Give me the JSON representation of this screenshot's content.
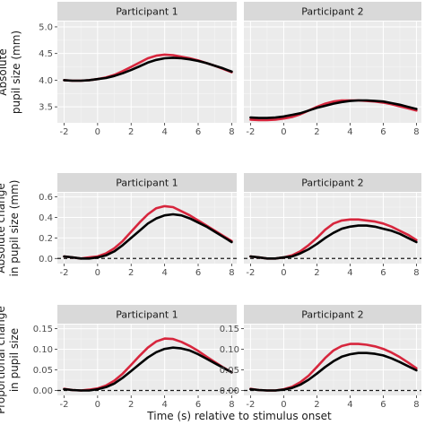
{
  "xlabel": "Time (s) relative to stimulus onset",
  "colors": {
    "red": "#d7263d",
    "black": "#000000"
  },
  "chart_data": [
    {
      "type": "line",
      "row": 0,
      "col": 0,
      "title": "Participant 1",
      "ylabel_lines": [
        "Absolute",
        "pupil size (mm)"
      ],
      "xlim": [
        -2.4,
        8.3
      ],
      "ylim": [
        3.2,
        5.1
      ],
      "yticks": [
        3.5,
        4.0,
        4.5,
        5.0
      ],
      "ytick_labels": [
        "3.5",
        "4.0",
        "4.5",
        "5.0"
      ],
      "xticks": [
        -2,
        0,
        2,
        4,
        6,
        8
      ],
      "xtick_labels": [
        "-2",
        "0",
        "2",
        "4",
        "6",
        "8"
      ],
      "zero_line": false,
      "x": [
        -2,
        -1.5,
        -1,
        -0.5,
        0,
        0.5,
        1,
        1.5,
        2,
        2.5,
        3,
        3.5,
        4,
        4.5,
        5,
        5.5,
        6,
        6.5,
        7,
        7.5,
        8
      ],
      "series": [
        {
          "color": "red",
          "values": [
            4.0,
            3.99,
            3.99,
            4.0,
            4.02,
            4.05,
            4.1,
            4.17,
            4.25,
            4.33,
            4.41,
            4.46,
            4.48,
            4.47,
            4.44,
            4.41,
            4.37,
            4.32,
            4.27,
            4.21,
            4.15
          ]
        },
        {
          "color": "black",
          "values": [
            4.0,
            3.99,
            3.99,
            4.0,
            4.02,
            4.04,
            4.08,
            4.13,
            4.19,
            4.26,
            4.33,
            4.38,
            4.41,
            4.42,
            4.41,
            4.39,
            4.36,
            4.32,
            4.27,
            4.22,
            4.16
          ]
        }
      ]
    },
    {
      "type": "line",
      "row": 0,
      "col": 1,
      "title": "Participant 2",
      "xlim": [
        -2.4,
        8.3
      ],
      "ylim": [
        3.2,
        5.1
      ],
      "yticks": [
        3.5,
        4.0,
        4.5,
        5.0
      ],
      "xticks": [
        -2,
        0,
        2,
        4,
        6,
        8
      ],
      "xtick_labels": [
        "-2",
        "0",
        "2",
        "4",
        "6",
        "8"
      ],
      "zero_line": false,
      "x": [
        -2,
        -1.5,
        -1,
        -0.5,
        0,
        0.5,
        1,
        1.5,
        2,
        2.5,
        3,
        3.5,
        4,
        4.5,
        5,
        5.5,
        6,
        6.5,
        7,
        7.5,
        8
      ],
      "series": [
        {
          "color": "red",
          "values": [
            3.26,
            3.25,
            3.25,
            3.26,
            3.28,
            3.31,
            3.36,
            3.43,
            3.5,
            3.56,
            3.6,
            3.62,
            3.62,
            3.62,
            3.61,
            3.6,
            3.58,
            3.55,
            3.51,
            3.47,
            3.43
          ]
        },
        {
          "color": "black",
          "values": [
            3.3,
            3.29,
            3.29,
            3.3,
            3.32,
            3.35,
            3.38,
            3.43,
            3.48,
            3.52,
            3.56,
            3.59,
            3.61,
            3.62,
            3.62,
            3.61,
            3.6,
            3.57,
            3.54,
            3.5,
            3.46
          ]
        }
      ]
    },
    {
      "type": "line",
      "row": 1,
      "col": 0,
      "title": "Participant 1",
      "ylabel_lines": [
        "Absolute change",
        "in pupil size (mm)"
      ],
      "xlim": [
        -2.4,
        8.3
      ],
      "ylim": [
        -0.05,
        0.64
      ],
      "yticks": [
        0.0,
        0.2,
        0.4,
        0.6
      ],
      "ytick_labels": [
        "0.0",
        "0.2",
        "0.4",
        "0.6"
      ],
      "xticks": [
        -2,
        0,
        2,
        4,
        6,
        8
      ],
      "xtick_labels": [
        "-2",
        "0",
        "2",
        "4",
        "6",
        "8"
      ],
      "zero_line": true,
      "x": [
        -2,
        -1.5,
        -1,
        -0.5,
        0,
        0.5,
        1,
        1.5,
        2,
        2.5,
        3,
        3.5,
        4,
        4.5,
        5,
        5.5,
        6,
        6.5,
        7,
        7.5,
        8
      ],
      "series": [
        {
          "color": "red",
          "values": [
            0.02,
            0.01,
            0.0,
            0.01,
            0.02,
            0.05,
            0.1,
            0.17,
            0.26,
            0.35,
            0.43,
            0.49,
            0.51,
            0.5,
            0.46,
            0.42,
            0.37,
            0.32,
            0.27,
            0.22,
            0.17
          ]
        },
        {
          "color": "black",
          "values": [
            0.02,
            0.01,
            0.0,
            0.0,
            0.01,
            0.03,
            0.07,
            0.13,
            0.2,
            0.27,
            0.34,
            0.39,
            0.42,
            0.43,
            0.42,
            0.39,
            0.35,
            0.31,
            0.26,
            0.21,
            0.16
          ]
        }
      ]
    },
    {
      "type": "line",
      "row": 1,
      "col": 1,
      "title": "Participant 2",
      "xlim": [
        -2.4,
        8.3
      ],
      "ylim": [
        -0.05,
        0.64
      ],
      "yticks": [
        0.0,
        0.2,
        0.4,
        0.6
      ],
      "xticks": [
        -2,
        0,
        2,
        4,
        6,
        8
      ],
      "xtick_labels": [
        "-2",
        "0",
        "2",
        "4",
        "6",
        "8"
      ],
      "zero_line": true,
      "x": [
        -2,
        -1.5,
        -1,
        -0.5,
        0,
        0.5,
        1,
        1.5,
        2,
        2.5,
        3,
        3.5,
        4,
        4.5,
        5,
        5.5,
        6,
        6.5,
        7,
        7.5,
        8
      ],
      "series": [
        {
          "color": "red",
          "values": [
            0.02,
            0.01,
            0.0,
            0.0,
            0.01,
            0.03,
            0.07,
            0.13,
            0.2,
            0.28,
            0.34,
            0.37,
            0.38,
            0.38,
            0.37,
            0.36,
            0.34,
            0.31,
            0.27,
            0.23,
            0.18
          ]
        },
        {
          "color": "black",
          "values": [
            0.02,
            0.01,
            0.0,
            0.0,
            0.01,
            0.02,
            0.05,
            0.09,
            0.14,
            0.2,
            0.25,
            0.29,
            0.31,
            0.32,
            0.32,
            0.31,
            0.29,
            0.27,
            0.24,
            0.2,
            0.16
          ]
        }
      ]
    },
    {
      "type": "line",
      "row": 2,
      "col": 0,
      "title": "Participant 1",
      "ylabel_lines": [
        "Proportional change",
        "in pupil size"
      ],
      "xlim": [
        -2.4,
        8.3
      ],
      "ylim": [
        -0.012,
        0.16
      ],
      "yticks": [
        0.0,
        0.05,
        0.1,
        0.15
      ],
      "ytick_labels": [
        "0.00",
        "0.05",
        "0.10",
        "0.15"
      ],
      "xticks": [
        -2,
        0,
        2,
        4,
        6,
        8
      ],
      "xtick_labels": [
        "-2",
        "0",
        "2",
        "4",
        "6",
        "8"
      ],
      "zero_line": true,
      "x": [
        -2,
        -1.5,
        -1,
        -0.5,
        0,
        0.5,
        1,
        1.5,
        2,
        2.5,
        3,
        3.5,
        4,
        4.5,
        5,
        5.5,
        6,
        6.5,
        7,
        7.5,
        8
      ],
      "series": [
        {
          "color": "red",
          "values": [
            0.004,
            0.001,
            0.0,
            0.002,
            0.005,
            0.012,
            0.024,
            0.041,
            0.062,
            0.084,
            0.104,
            0.119,
            0.126,
            0.125,
            0.118,
            0.108,
            0.096,
            0.082,
            0.069,
            0.056,
            0.044
          ]
        },
        {
          "color": "black",
          "values": [
            0.003,
            0.001,
            0.0,
            0.0,
            0.003,
            0.008,
            0.017,
            0.031,
            0.047,
            0.064,
            0.08,
            0.093,
            0.101,
            0.104,
            0.102,
            0.097,
            0.088,
            0.077,
            0.066,
            0.055,
            0.044
          ]
        }
      ]
    },
    {
      "type": "line",
      "row": 2,
      "col": 1,
      "title": "Participant 2",
      "xlim": [
        -2.4,
        8.3
      ],
      "ylim": [
        -0.012,
        0.16
      ],
      "yticks": [
        0.0,
        0.05,
        0.1,
        0.15
      ],
      "ytick_labels": [
        "0.00",
        "0.05",
        "0.10",
        "0.15"
      ],
      "xticks": [
        -2,
        0,
        2,
        4,
        6,
        8
      ],
      "xtick_labels": [
        "-2",
        "0",
        "2",
        "4",
        "6",
        "8"
      ],
      "zero_line": true,
      "x": [
        -2,
        -1.5,
        -1,
        -0.5,
        0,
        0.5,
        1,
        1.5,
        2,
        2.5,
        3,
        3.5,
        4,
        4.5,
        5,
        5.5,
        6,
        6.5,
        7,
        7.5,
        8
      ],
      "series": [
        {
          "color": "red",
          "values": [
            0.004,
            0.001,
            0.0,
            0.0,
            0.003,
            0.009,
            0.02,
            0.036,
            0.057,
            0.079,
            0.097,
            0.108,
            0.113,
            0.113,
            0.111,
            0.107,
            0.101,
            0.092,
            0.081,
            0.068,
            0.054
          ]
        },
        {
          "color": "black",
          "values": [
            0.003,
            0.001,
            0.0,
            0.0,
            0.002,
            0.006,
            0.014,
            0.026,
            0.041,
            0.057,
            0.071,
            0.082,
            0.088,
            0.091,
            0.091,
            0.089,
            0.085,
            0.078,
            0.069,
            0.059,
            0.049
          ]
        }
      ]
    }
  ]
}
